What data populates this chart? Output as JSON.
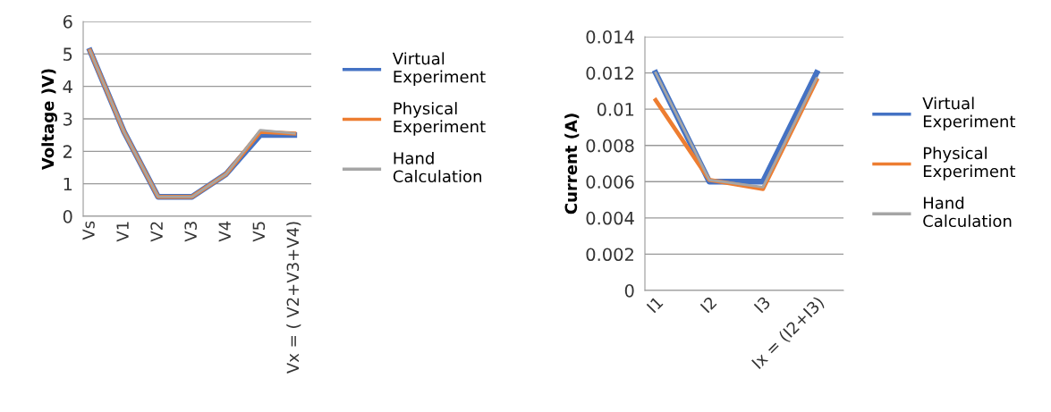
{
  "chart_data": [
    {
      "type": "line",
      "ylabel": "Voltage )V)",
      "categories": [
        "Vs",
        "V1",
        "V2",
        "V3",
        "V4",
        "V5",
        "Vx = ( V2+V3+V4)"
      ],
      "ylim": [
        0,
        6
      ],
      "yticks": [
        0,
        1,
        2,
        3,
        4,
        5,
        6
      ],
      "grid": "y",
      "legend": "right",
      "marker": "none",
      "series": [
        {
          "name": "Virtual Experiment",
          "color": "#4472c4",
          "values": [
            5.1,
            2.6,
            0.6,
            0.6,
            1.3,
            2.5,
            2.5
          ]
        },
        {
          "name": "Physical Experiment",
          "color": "#ed7d31",
          "values": [
            5.1,
            2.6,
            0.6,
            0.6,
            1.3,
            2.6,
            2.55
          ]
        },
        {
          "name": "Hand Calculation",
          "color": "#a5a5a5",
          "values": [
            5.1,
            2.6,
            0.6,
            0.6,
            1.3,
            2.65,
            2.55
          ]
        }
      ]
    },
    {
      "type": "line",
      "ylabel": "Current (A)",
      "categories": [
        "I1",
        "I2",
        "I3",
        "Ix = (I2+I3)"
      ],
      "ylim": [
        0,
        0.014
      ],
      "yticks": [
        0,
        0.002,
        0.004,
        0.006,
        0.008,
        0.01,
        0.012,
        0.014
      ],
      "grid": "y",
      "legend": "right",
      "marker": "none",
      "series": [
        {
          "name": "Virtual Experiment",
          "color": "#4472c4",
          "values": [
            0.012,
            0.006,
            0.006,
            0.012
          ]
        },
        {
          "name": "Physical Experiment",
          "color": "#ed7d31",
          "values": [
            0.0105,
            0.0061,
            0.0056,
            0.0116
          ]
        },
        {
          "name": "Hand Calculation",
          "color": "#a5a5a5",
          "values": [
            0.012,
            0.0061,
            0.0057,
            0.0117
          ]
        }
      ]
    }
  ]
}
